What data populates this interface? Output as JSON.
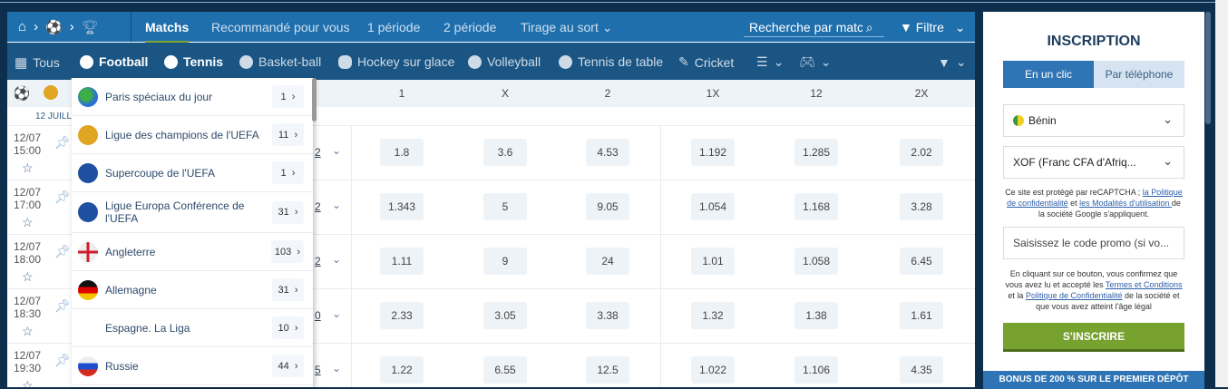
{
  "nav": {
    "items": [
      {
        "label": "Matchs",
        "active": true
      },
      {
        "label": "Recommandé pour vous"
      },
      {
        "label": "1 période"
      },
      {
        "label": "2 période"
      },
      {
        "label": "Tirage au sort"
      }
    ],
    "search_placeholder": "Recherche par match",
    "filter": "Filtre"
  },
  "sports": [
    {
      "label": "Tous"
    },
    {
      "label": "Football",
      "active": true
    },
    {
      "label": "Tennis"
    },
    {
      "label": "Basket-ball"
    },
    {
      "label": "Hockey sur glace"
    },
    {
      "label": "Volleyball"
    },
    {
      "label": "Tennis de table"
    },
    {
      "label": "Cricket"
    }
  ],
  "columns": [
    "1",
    "X",
    "2",
    "1X",
    "12",
    "2X"
  ],
  "date_label": "12 JUILL",
  "rows": [
    {
      "date": "12/07",
      "time": "15:00",
      "frag": "2",
      "odds": [
        "1.8",
        "3.6",
        "4.53",
        "1.192",
        "1.285",
        "2.02"
      ]
    },
    {
      "date": "12/07",
      "time": "17:00",
      "frag": "2",
      "odds": [
        "1.343",
        "5",
        "9.05",
        "1.054",
        "1.168",
        "3.28"
      ]
    },
    {
      "date": "12/07",
      "time": "18:00",
      "frag": "2",
      "odds": [
        "1.11",
        "9",
        "24",
        "1.01",
        "1.058",
        "6.45"
      ]
    },
    {
      "date": "12/07",
      "time": "18:30",
      "frag": "0",
      "odds": [
        "2.33",
        "3.05",
        "3.38",
        "1.32",
        "1.38",
        "1.61"
      ]
    },
    {
      "date": "12/07",
      "time": "19:30",
      "frag": "5",
      "odds": [
        "1.22",
        "6.55",
        "12.5",
        "1.022",
        "1.106",
        "4.35"
      ]
    }
  ],
  "dropdown": [
    {
      "label": "Paris spéciaux du jour",
      "count": "1",
      "icon": "globe"
    },
    {
      "label": "Ligue des champions de l'UEFA",
      "count": "11",
      "icon": "trophy"
    },
    {
      "label": "Supercoupe de l'UEFA",
      "count": "1",
      "icon": "eu"
    },
    {
      "label": "Ligue Europa Conférence de l'UEFA",
      "count": "31",
      "icon": "eu"
    },
    {
      "label": "Angleterre",
      "count": "103",
      "icon": "england"
    },
    {
      "label": "Allemagne",
      "count": "31",
      "icon": "germany"
    },
    {
      "label": "Espagne. La Liga",
      "count": "10",
      "icon": "none"
    },
    {
      "label": "Russie",
      "count": "44",
      "icon": "russia"
    }
  ],
  "signup": {
    "title": "INSCRIPTION",
    "tab_click": "En un clic",
    "tab_phone": "Par téléphone",
    "country": "Bénin",
    "currency": "XOF (Franc CFA d'Afriq...",
    "recaptcha_pre": "Ce site est protégé par reCAPTCHA ; ",
    "recaptcha_link1": "la Politique de confidentialité",
    "recaptcha_mid": " et ",
    "recaptcha_link2": "les Modalités d'utilisation ",
    "recaptcha_post": "de la société Google s'appliquent.",
    "promo_placeholder": "Saisissez le code promo (si vo...",
    "terms_pre": "En cliquant sur ce bouton, vous confirmez que vous avez lu et accepté les ",
    "terms_link1": "Termes et Conditions",
    "terms_mid": " et la ",
    "terms_link2": "Politique de Confidentialité",
    "terms_post": " de la société et que vous avez atteint l'âge légal",
    "button": "S'INSCRIRE",
    "bonus": "BONUS DE 200 %  SUR LE PREMIER DÉPÔT"
  },
  "colors": {
    "accent": "#7ea831",
    "nav": "#1f6fad",
    "sports": "#1a5584",
    "bg": "#0d2f4d"
  }
}
